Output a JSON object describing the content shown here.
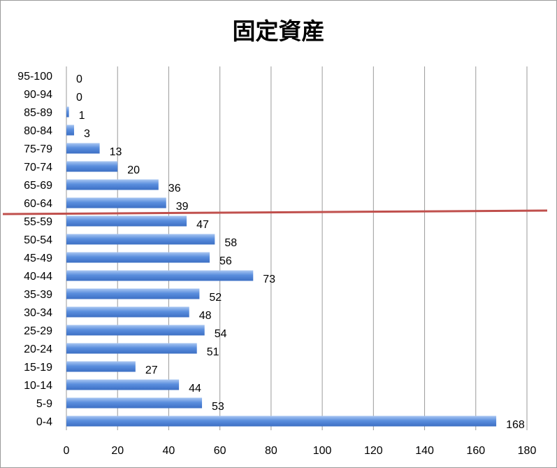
{
  "chart_data": {
    "type": "bar",
    "orientation": "horizontal",
    "title": "固定資産",
    "categories": [
      "0-4",
      "5-9",
      "10-14",
      "15-19",
      "20-24",
      "25-29",
      "30-34",
      "35-39",
      "40-44",
      "45-49",
      "50-54",
      "55-59",
      "60-64",
      "65-69",
      "70-74",
      "75-79",
      "80-84",
      "85-89",
      "90-94",
      "95-100"
    ],
    "values": [
      168,
      53,
      44,
      27,
      51,
      54,
      48,
      52,
      73,
      56,
      58,
      47,
      39,
      36,
      20,
      13,
      3,
      1,
      0,
      0
    ],
    "xlim": [
      0,
      180
    ],
    "xticks": [
      0,
      20,
      40,
      60,
      80,
      100,
      120,
      140,
      160,
      180
    ],
    "grid": "vertical",
    "legend": "none",
    "bar_color": "#5b8fde",
    "reference_line": {
      "between": [
        "55-59",
        "60-64"
      ],
      "color": "#c0504d"
    }
  }
}
